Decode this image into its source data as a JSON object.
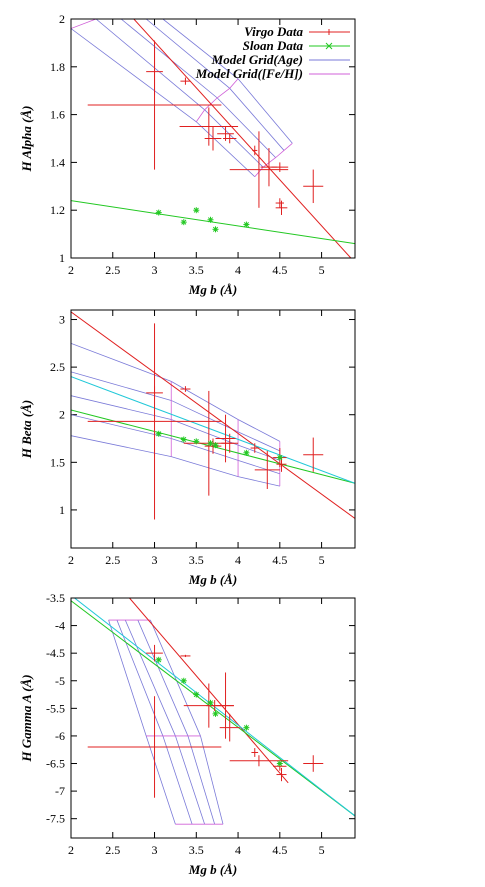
{
  "colors": {
    "virgo": "#e02020",
    "sloan": "#22c822",
    "age": "#7a7ad8",
    "feh": "#d060d8",
    "fit_cyan": "#20c8d8"
  },
  "legend": {
    "virgo": "Virgo Data",
    "sloan": "Sloan Data",
    "age": "Model Grid(Age)",
    "feh": "Model Grid([Fe/H])"
  },
  "chart_data": [
    {
      "type": "scatter",
      "xlabel": "Mg b (Å)",
      "ylabel": "H Alpha (Å)",
      "xlim": [
        2,
        5.4
      ],
      "ylim": [
        1,
        2
      ],
      "xticks": [
        "2",
        "2.5",
        "3",
        "3.5",
        "4",
        "4.5",
        "5"
      ],
      "yticks": [
        "1",
        "1.2",
        "1.4",
        "1.6",
        "1.8",
        "2"
      ],
      "virgo_points": [
        {
          "x": 3.0,
          "y": 1.78,
          "xerr": 0.1,
          "yerr": 0.1
        },
        {
          "x": 3.0,
          "y": 1.64,
          "xerr": 0.8,
          "yerr": 0.27
        },
        {
          "x": 3.37,
          "y": 1.74,
          "xerr": 0.06,
          "yerr": 0.015
        },
        {
          "x": 3.65,
          "y": 1.55,
          "xerr": 0.35,
          "yerr": 0.08
        },
        {
          "x": 3.7,
          "y": 1.5,
          "xerr": 0.1,
          "yerr": 0.05
        },
        {
          "x": 3.85,
          "y": 1.52,
          "xerr": 0.1,
          "yerr": 0.03
        },
        {
          "x": 3.9,
          "y": 1.5,
          "xerr": 0.08,
          "yerr": 0.02
        },
        {
          "x": 4.2,
          "y": 1.45,
          "xerr": 0.03,
          "yerr": 0.02
        },
        {
          "x": 4.25,
          "y": 1.37,
          "xerr": 0.35,
          "yerr": 0.16
        },
        {
          "x": 4.37,
          "y": 1.38,
          "xerr": 0.1,
          "yerr": 0.08
        },
        {
          "x": 4.5,
          "y": 1.38,
          "xerr": 0.1,
          "yerr": 0.02
        },
        {
          "x": 4.5,
          "y": 1.23,
          "xerr": 0.05,
          "yerr": 0.02
        },
        {
          "x": 4.52,
          "y": 1.21,
          "xerr": 0.07,
          "yerr": 0.03
        },
        {
          "x": 4.9,
          "y": 1.3,
          "xerr": 0.12,
          "yerr": 0.07
        }
      ],
      "sloan_points": [
        {
          "x": 3.05,
          "y": 1.19
        },
        {
          "x": 3.35,
          "y": 1.15
        },
        {
          "x": 3.5,
          "y": 1.2
        },
        {
          "x": 3.67,
          "y": 1.16
        },
        {
          "x": 3.73,
          "y": 1.12
        },
        {
          "x": 4.1,
          "y": 1.14
        }
      ],
      "fits": [
        {
          "color": "virgo",
          "x": [
            2.7,
            5.35
          ],
          "y": [
            2.02,
            1.0
          ]
        },
        {
          "color": "sloan",
          "x": [
            2.0,
            5.4
          ],
          "y": [
            1.24,
            1.06
          ]
        }
      ],
      "age_grid": [
        {
          "x": [
            2.0,
            3.5,
            4.2
          ],
          "y": [
            1.96,
            1.57,
            1.34
          ]
        },
        {
          "x": [
            2.3,
            3.6,
            4.3
          ],
          "y": [
            2.0,
            1.62,
            1.38
          ]
        },
        {
          "x": [
            2.6,
            3.75,
            4.45
          ],
          "y": [
            2.0,
            1.67,
            1.42
          ]
        },
        {
          "x": [
            2.9,
            3.9,
            4.55
          ],
          "y": [
            2.0,
            1.71,
            1.45
          ]
        },
        {
          "x": [
            3.1,
            4.0,
            4.65
          ],
          "y": [
            2.0,
            1.75,
            1.48
          ]
        }
      ],
      "feh_grid": [
        {
          "x": [
            2.0,
            2.3,
            2.6,
            2.9,
            3.1
          ],
          "y": [
            1.96,
            2.0,
            2.0,
            2.0,
            2.0
          ]
        },
        {
          "x": [
            3.5,
            3.6,
            3.75,
            3.9,
            4.0
          ],
          "y": [
            1.57,
            1.62,
            1.67,
            1.71,
            1.75
          ]
        },
        {
          "x": [
            4.2,
            4.3,
            4.45,
            4.55,
            4.65
          ],
          "y": [
            1.34,
            1.38,
            1.42,
            1.45,
            1.48
          ]
        }
      ]
    },
    {
      "type": "scatter",
      "xlabel": "Mg b (Å)",
      "ylabel": "H Beta (Å)",
      "xlim": [
        2,
        5.4
      ],
      "ylim": [
        0.6,
        3.1
      ],
      "xticks": [
        "2",
        "2.5",
        "3",
        "3.5",
        "4",
        "4.5",
        "5"
      ],
      "yticks": [
        "1",
        "1.5",
        "2",
        "2.5",
        "3"
      ],
      "virgo_points": [
        {
          "x": 3.0,
          "y": 2.23,
          "xerr": 0.1,
          "yerr": 0.07
        },
        {
          "x": 3.0,
          "y": 1.93,
          "xerr": 0.8,
          "yerr": 1.03
        },
        {
          "x": 3.37,
          "y": 2.27,
          "xerr": 0.06,
          "yerr": 0.03
        },
        {
          "x": 3.65,
          "y": 1.7,
          "xerr": 0.3,
          "yerr": 0.55
        },
        {
          "x": 3.7,
          "y": 1.67,
          "xerr": 0.1,
          "yerr": 0.08
        },
        {
          "x": 3.85,
          "y": 1.75,
          "xerr": 0.12,
          "yerr": 0.25
        },
        {
          "x": 3.9,
          "y": 1.7,
          "xerr": 0.1,
          "yerr": 0.1
        },
        {
          "x": 4.2,
          "y": 1.65,
          "xerr": 0.05,
          "yerr": 0.05
        },
        {
          "x": 4.35,
          "y": 1.42,
          "xerr": 0.15,
          "yerr": 0.2
        },
        {
          "x": 4.5,
          "y": 1.55,
          "xerr": 0.08,
          "yerr": 0.1
        },
        {
          "x": 4.52,
          "y": 1.48,
          "xerr": 0.06,
          "yerr": 0.08
        },
        {
          "x": 4.9,
          "y": 1.58,
          "xerr": 0.12,
          "yerr": 0.18
        }
      ],
      "sloan_points": [
        {
          "x": 3.05,
          "y": 1.8
        },
        {
          "x": 3.35,
          "y": 1.74
        },
        {
          "x": 3.5,
          "y": 1.72
        },
        {
          "x": 3.67,
          "y": 1.7
        },
        {
          "x": 3.73,
          "y": 1.68
        },
        {
          "x": 4.1,
          "y": 1.6
        },
        {
          "x": 4.5,
          "y": 1.55
        }
      ],
      "fits": [
        {
          "color": "virgo",
          "x": [
            2.0,
            5.4
          ],
          "y": [
            3.08,
            0.91
          ]
        },
        {
          "color": "sloan",
          "x": [
            2.0,
            5.4
          ],
          "y": [
            2.05,
            1.28
          ]
        },
        {
          "color": "fit_cyan",
          "x": [
            2.0,
            5.4
          ],
          "y": [
            2.4,
            1.28
          ]
        }
      ],
      "age_grid": [
        {
          "x": [
            2.0,
            3.2,
            4.0,
            4.5
          ],
          "y": [
            1.78,
            1.56,
            1.35,
            1.25
          ]
        },
        {
          "x": [
            2.0,
            3.2,
            4.0,
            4.5
          ],
          "y": [
            2.0,
            1.75,
            1.52,
            1.38
          ]
        },
        {
          "x": [
            2.0,
            3.2,
            4.0,
            4.5
          ],
          "y": [
            2.2,
            1.95,
            1.68,
            1.52
          ]
        },
        {
          "x": [
            2.0,
            3.2,
            4.0,
            4.5
          ],
          "y": [
            2.45,
            2.15,
            1.82,
            1.62
          ]
        },
        {
          "x": [
            2.0,
            3.2,
            4.0,
            4.5
          ],
          "y": [
            2.75,
            2.35,
            1.95,
            1.72
          ]
        }
      ],
      "feh_grid": [
        {
          "x": [
            2.0,
            2.0,
            2.0,
            2.0,
            2.0
          ],
          "y": [
            1.78,
            2.0,
            2.2,
            2.45,
            2.75
          ]
        },
        {
          "x": [
            3.2,
            3.2,
            3.2,
            3.2,
            3.2
          ],
          "y": [
            1.56,
            1.75,
            1.95,
            2.15,
            2.35
          ]
        },
        {
          "x": [
            4.0,
            4.0,
            4.0,
            4.0,
            4.0
          ],
          "y": [
            1.35,
            1.52,
            1.68,
            1.82,
            1.95
          ]
        },
        {
          "x": [
            4.5,
            4.5,
            4.5,
            4.5,
            4.5
          ],
          "y": [
            1.25,
            1.38,
            1.52,
            1.62,
            1.72
          ]
        }
      ]
    },
    {
      "type": "scatter",
      "xlabel": "Mg b (Å)",
      "ylabel": "H Gamma A (Å)",
      "xlim": [
        2,
        5.4
      ],
      "ylim": [
        -7.85,
        -3.5
      ],
      "xticks": [
        "2",
        "2.5",
        "3",
        "3.5",
        "4",
        "4.5",
        "5"
      ],
      "yticks": [
        "-3.5",
        "-4",
        "-4.5",
        "-5",
        "-5.5",
        "-6",
        "-6.5",
        "-7",
        "-7.5"
      ],
      "virgo_points": [
        {
          "x": 3.0,
          "y": -4.5,
          "xerr": 0.1,
          "yerr": 0.15
        },
        {
          "x": 3.0,
          "y": -6.2,
          "xerr": 0.8,
          "yerr": 0.92
        },
        {
          "x": 3.37,
          "y": -4.55,
          "xerr": 0.06,
          "yerr": 0.02
        },
        {
          "x": 3.65,
          "y": -5.45,
          "xerr": 0.3,
          "yerr": 0.4
        },
        {
          "x": 3.72,
          "y": -5.45,
          "xerr": 0.1,
          "yerr": 0.1
        },
        {
          "x": 3.85,
          "y": -5.45,
          "xerr": 0.1,
          "yerr": 0.6
        },
        {
          "x": 3.9,
          "y": -5.85,
          "xerr": 0.12,
          "yerr": 0.25
        },
        {
          "x": 4.2,
          "y": -6.3,
          "xerr": 0.04,
          "yerr": 0.08
        },
        {
          "x": 4.25,
          "y": -6.45,
          "xerr": 0.35,
          "yerr": 0.1
        },
        {
          "x": 4.5,
          "y": -6.55,
          "xerr": 0.08,
          "yerr": 0.08
        },
        {
          "x": 4.52,
          "y": -6.7,
          "xerr": 0.06,
          "yerr": 0.12
        },
        {
          "x": 4.9,
          "y": -6.5,
          "xerr": 0.12,
          "yerr": 0.15
        }
      ],
      "sloan_points": [
        {
          "x": 3.05,
          "y": -4.62
        },
        {
          "x": 3.35,
          "y": -5.0
        },
        {
          "x": 3.5,
          "y": -5.25
        },
        {
          "x": 3.67,
          "y": -5.4
        },
        {
          "x": 3.73,
          "y": -5.6
        },
        {
          "x": 4.1,
          "y": -5.85
        },
        {
          "x": 4.5,
          "y": -6.5
        }
      ],
      "fits": [
        {
          "color": "virgo",
          "x": [
            2.7,
            4.6
          ],
          "y": [
            -3.5,
            -6.85
          ]
        },
        {
          "color": "sloan",
          "x": [
            2.0,
            5.4
          ],
          "y": [
            -3.55,
            -7.45
          ]
        },
        {
          "color": "fit_cyan",
          "x": [
            2.0,
            5.4
          ],
          "y": [
            -3.45,
            -7.45
          ]
        }
      ],
      "age_grid": [
        {
          "x": [
            2.45,
            2.9,
            3.25
          ],
          "y": [
            -3.9,
            -6.0,
            -7.6
          ]
        },
        {
          "x": [
            2.55,
            3.1,
            3.45
          ],
          "y": [
            -3.9,
            -6.0,
            -7.6
          ]
        },
        {
          "x": [
            2.65,
            3.25,
            3.6
          ],
          "y": [
            -3.9,
            -6.0,
            -7.6
          ]
        },
        {
          "x": [
            2.8,
            3.4,
            3.72
          ],
          "y": [
            -3.9,
            -6.0,
            -7.6
          ]
        },
        {
          "x": [
            2.95,
            3.55,
            3.82
          ],
          "y": [
            -3.9,
            -6.0,
            -7.6
          ]
        }
      ],
      "feh_grid": [
        {
          "x": [
            2.45,
            2.55,
            2.65,
            2.8,
            2.95
          ],
          "y": [
            -3.9,
            -3.9,
            -3.9,
            -3.9,
            -3.9
          ]
        },
        {
          "x": [
            2.9,
            3.1,
            3.25,
            3.4,
            3.55
          ],
          "y": [
            -6.0,
            -6.0,
            -6.0,
            -6.0,
            -6.0
          ]
        },
        {
          "x": [
            3.25,
            3.45,
            3.6,
            3.72,
            3.82
          ],
          "y": [
            -7.6,
            -7.6,
            -7.6,
            -7.6,
            -7.6
          ]
        }
      ]
    }
  ]
}
